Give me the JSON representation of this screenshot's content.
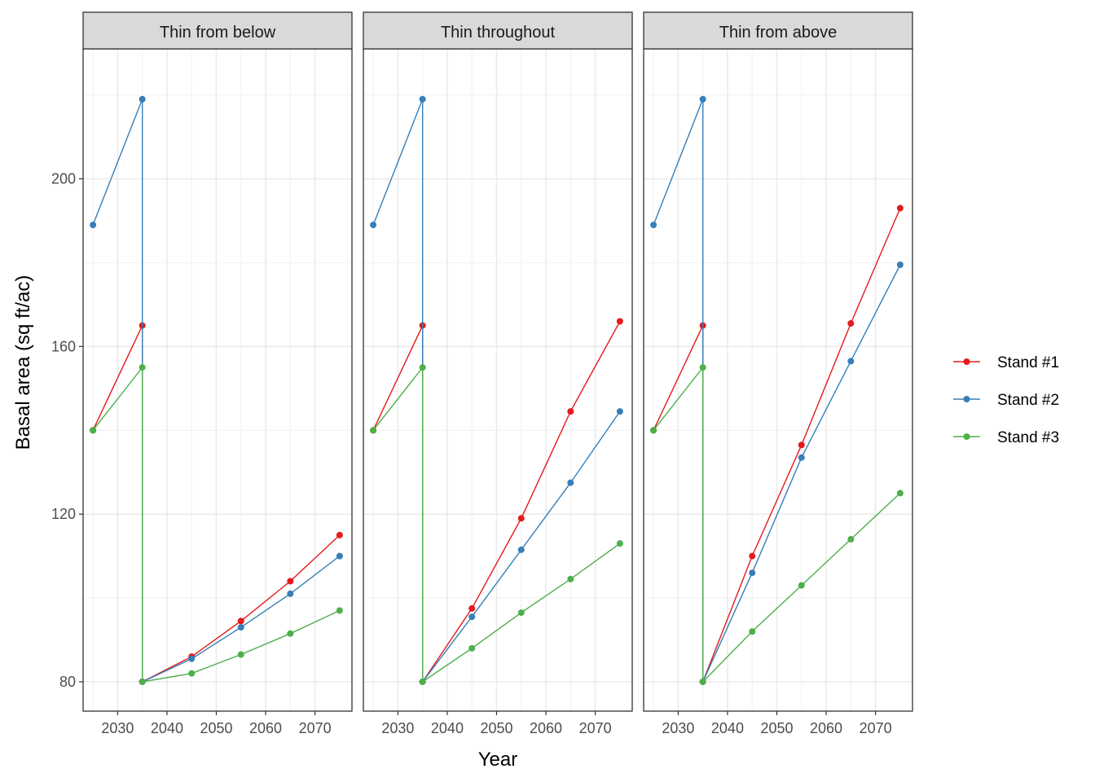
{
  "chart_data": {
    "type": "line",
    "xlabel": "Year",
    "ylabel": "Basal area (sq ft/ac)",
    "xlim": [
      2023,
      2077.5
    ],
    "ylim": [
      73,
      231
    ],
    "x_ticks": [
      2030,
      2040,
      2050,
      2060,
      2070
    ],
    "y_ticks": [
      80,
      120,
      160,
      200
    ],
    "grid": true,
    "legend_position": "right",
    "series_colors": {
      "Stand #1": "#e41a1c",
      "Stand #2": "#377eb8",
      "Stand #3": "#4daf4a"
    },
    "panels": [
      {
        "title": "Thin from below",
        "series": [
          {
            "name": "Stand #1",
            "x": [
              2025,
              2035,
              2035,
              2045,
              2055,
              2065,
              2075
            ],
            "y": [
              140,
              165,
              80,
              86,
              94.5,
              104,
              115
            ]
          },
          {
            "name": "Stand #2",
            "x": [
              2025,
              2035,
              2035,
              2045,
              2055,
              2065,
              2075
            ],
            "y": [
              189,
              219,
              80,
              85.5,
              93,
              101,
              110
            ]
          },
          {
            "name": "Stand #3",
            "x": [
              2025,
              2035,
              2035,
              2045,
              2055,
              2065,
              2075
            ],
            "y": [
              140,
              155,
              80,
              82,
              86.5,
              91.5,
              97
            ]
          }
        ]
      },
      {
        "title": "Thin throughout",
        "series": [
          {
            "name": "Stand #1",
            "x": [
              2025,
              2035,
              2035,
              2045,
              2055,
              2065,
              2075
            ],
            "y": [
              140,
              165,
              80,
              97.5,
              119,
              144.5,
              166
            ]
          },
          {
            "name": "Stand #2",
            "x": [
              2025,
              2035,
              2035,
              2045,
              2055,
              2065,
              2075
            ],
            "y": [
              189,
              219,
              80,
              95.5,
              111.5,
              127.5,
              144.5
            ]
          },
          {
            "name": "Stand #3",
            "x": [
              2025,
              2035,
              2035,
              2045,
              2055,
              2065,
              2075
            ],
            "y": [
              140,
              155,
              80,
              88,
              96.5,
              104.5,
              113
            ]
          }
        ]
      },
      {
        "title": "Thin from above",
        "series": [
          {
            "name": "Stand #1",
            "x": [
              2025,
              2035,
              2035,
              2045,
              2055,
              2065,
              2075
            ],
            "y": [
              140,
              165,
              80,
              110,
              136.5,
              165.5,
              193
            ]
          },
          {
            "name": "Stand #2",
            "x": [
              2025,
              2035,
              2035,
              2045,
              2055,
              2065,
              2075
            ],
            "y": [
              189,
              219,
              80,
              106,
              133.5,
              156.5,
              179.5
            ]
          },
          {
            "name": "Stand #3",
            "x": [
              2025,
              2035,
              2035,
              2045,
              2055,
              2065,
              2075
            ],
            "y": [
              140,
              155,
              80,
              92,
              103,
              114,
              125
            ]
          }
        ]
      }
    ],
    "legend": [
      {
        "label": "Stand #1",
        "color": "#e41a1c"
      },
      {
        "label": "Stand #2",
        "color": "#377eb8"
      },
      {
        "label": "Stand #3",
        "color": "#4daf4a"
      }
    ]
  }
}
